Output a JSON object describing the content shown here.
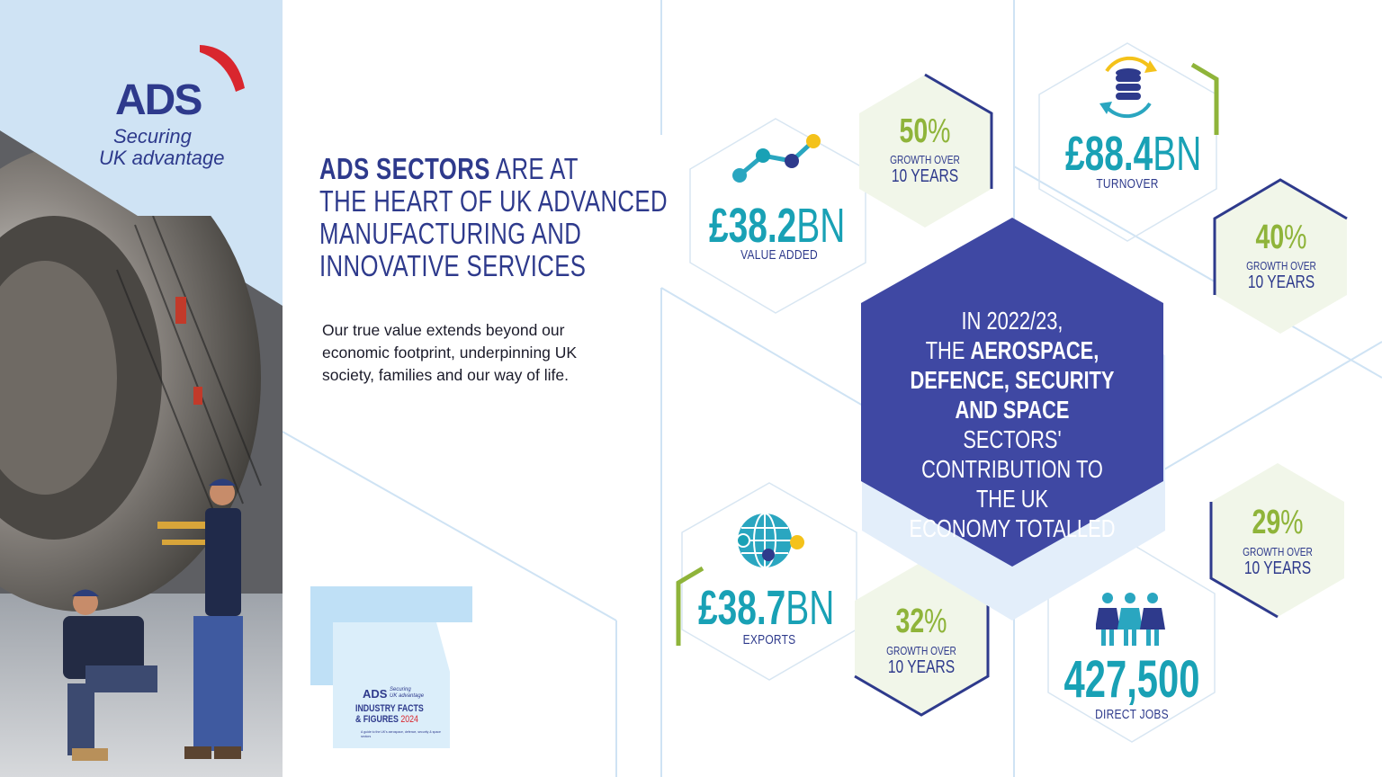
{
  "brand": {
    "logo_text": "ADS",
    "tagline_line1": "Securing",
    "tagline_line2": "UK advantage"
  },
  "headline": {
    "bold_part": "ADS SECTORS",
    "line1_rest": " ARE AT",
    "line2": "THE HEART OF UK ADVANCED",
    "line3": "MANUFACTURING AND",
    "line4": "INNOVATIVE SERVICES"
  },
  "intro": {
    "line1": "Our true value extends beyond our",
    "line2": "economic footprint, underpinning UK",
    "line3": "society, families and our way of life."
  },
  "center": {
    "line1": "IN 2022/23,",
    "line2_plain": "THE ",
    "line2_bold": "AEROSPACE,",
    "line3_bold": "DEFENCE, SECURITY",
    "line4_bold": "AND SPACE",
    "line4_plain": " SECTORS'",
    "line5": "CONTRIBUTION TO THE UK",
    "line6": "ECONOMY TOTALLED"
  },
  "stats": {
    "value_added": {
      "value": "£38.2",
      "unit": "BN",
      "label": "VALUE ADDED",
      "icon": "line-chart-icon"
    },
    "value_added_growth": {
      "pct": "50",
      "pct_sign": "%",
      "line1": "GROWTH OVER",
      "line2": "10 YEARS"
    },
    "turnover": {
      "value": "£88.4",
      "unit": "BN",
      "label": "TURNOVER",
      "icon": "database-refresh-icon"
    },
    "turnover_growth": {
      "pct": "40",
      "pct_sign": "%",
      "line1": "GROWTH OVER",
      "line2": "10 YEARS"
    },
    "exports": {
      "value": "£38.7",
      "unit": "BN",
      "label": "EXPORTS",
      "icon": "globe-icon"
    },
    "exports_growth": {
      "pct": "32",
      "pct_sign": "%",
      "line1": "GROWTH OVER",
      "line2": "10 YEARS"
    },
    "jobs": {
      "value": "427,500",
      "label": "DIRECT JOBS",
      "icon": "people-icon"
    },
    "jobs_growth": {
      "pct": "29",
      "pct_sign": "%",
      "line1": "GROWTH OVER",
      "line2": "10 YEARS"
    }
  },
  "report": {
    "logo_text": "ADS",
    "tagline1": "Securing",
    "tagline2": "UK advantage",
    "title_line1": "INDUSTRY FACTS",
    "title_line2": "& FIGURES",
    "year": "2024",
    "subtitle": "A guide to the UK's aerospace, defence, security & space sectors"
  },
  "colors": {
    "navy": "#2e3a8c",
    "teal": "#19a1b5",
    "green": "#8fb43a",
    "light_blue": "#cfe3f4",
    "hex_fill": "#3f48a3",
    "accent_red": "#d9262e"
  }
}
